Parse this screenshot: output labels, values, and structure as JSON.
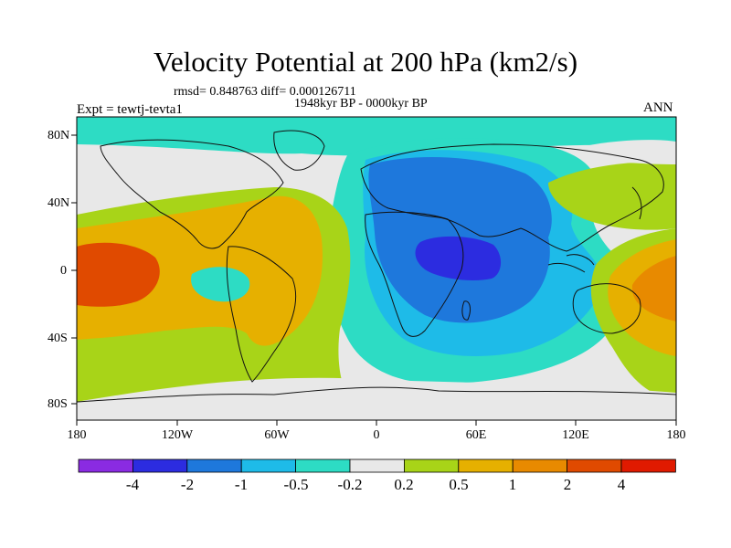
{
  "title": "Velocity Potential at 200 hPa (km2/s)",
  "stats_line": "rmsd= 0.848763 diff= 0.000126711",
  "period_line": "1948kyr BP - 0000kyr BP",
  "expt_label": "Expt = tewtj-tevta1",
  "season_label": "ANN",
  "lat_labels": [
    "80N",
    "40N",
    "0",
    "40S",
    "80S"
  ],
  "lon_labels": [
    "180",
    "120W",
    "60W",
    "0",
    "60E",
    "120E",
    "180"
  ],
  "colorbar": {
    "colors": [
      "#8a2be2",
      "#2c2ce0",
      "#1e78dc",
      "#1ebbe8",
      "#2ddcc4",
      "#e8e8e8",
      "#a8d418",
      "#e6b000",
      "#e88a00",
      "#e04a00",
      "#e01a00"
    ],
    "labels": [
      "-4",
      "-2",
      "-1",
      "-0.5",
      "-0.2",
      "0.2",
      "0.5",
      "1",
      "2",
      "4"
    ]
  }
}
